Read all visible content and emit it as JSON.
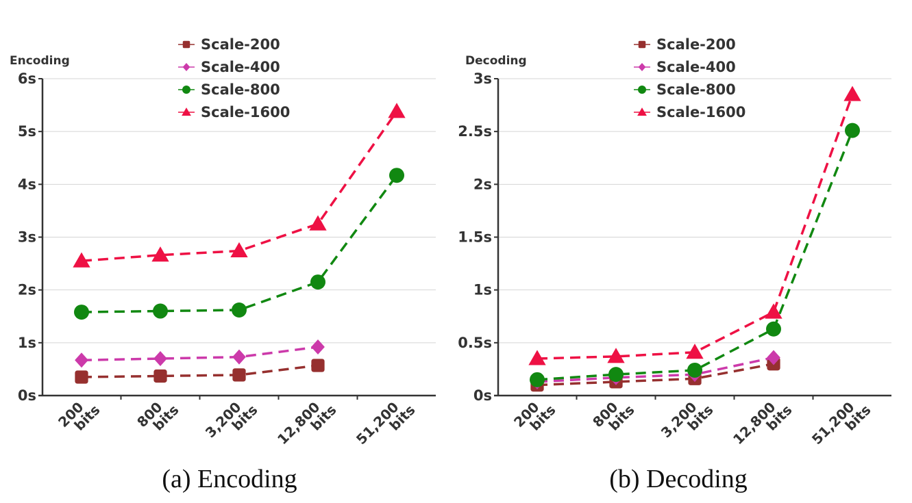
{
  "figure": {
    "captions": [
      "(a) Encoding",
      "(b) Decoding"
    ]
  },
  "chart_data": [
    {
      "type": "line",
      "title": "",
      "ylabel": "Encoding",
      "xlabel": "",
      "categories": [
        "200 bits",
        "800 bits",
        "3,200 bits",
        "12,800 bits",
        "51,200 bits"
      ],
      "category_lines": [
        [
          "200",
          "bits"
        ],
        [
          "800",
          "bits"
        ],
        [
          "3,200",
          "bits"
        ],
        [
          "12,800",
          "bits"
        ],
        [
          "51,200",
          "bits"
        ]
      ],
      "ylim": [
        0,
        6
      ],
      "yticks": [
        0,
        1,
        2,
        3,
        4,
        5,
        6
      ],
      "ytick_labels": [
        "0s",
        "1s",
        "2s",
        "3s",
        "4s",
        "5s",
        "6s"
      ],
      "grid": true,
      "legend_position": "top-center",
      "series": [
        {
          "name": "Scale-200",
          "color": "#96302f",
          "marker": "square",
          "values": [
            0.35,
            0.37,
            0.39,
            0.57,
            null
          ]
        },
        {
          "name": "Scale-400",
          "color": "#cc3aaa",
          "marker": "diamond",
          "values": [
            0.67,
            0.7,
            0.73,
            0.92,
            null
          ]
        },
        {
          "name": "Scale-800",
          "color": "#118811",
          "marker": "circle",
          "values": [
            1.58,
            1.6,
            1.62,
            2.15,
            4.17
          ]
        },
        {
          "name": "Scale-1600",
          "color": "#ee1144",
          "marker": "triangle",
          "values": [
            2.55,
            2.66,
            2.74,
            3.25,
            5.38
          ]
        }
      ]
    },
    {
      "type": "line",
      "title": "",
      "ylabel": "Decoding",
      "xlabel": "",
      "categories": [
        "200 bits",
        "800 bits",
        "3,200 bits",
        "12,800 bits",
        "51,200 bits"
      ],
      "category_lines": [
        [
          "200",
          "bits"
        ],
        [
          "800",
          "bits"
        ],
        [
          "3,200",
          "bits"
        ],
        [
          "12,800",
          "bits"
        ],
        [
          "51,200",
          "bits"
        ]
      ],
      "ylim": [
        0,
        3
      ],
      "yticks": [
        0,
        0.5,
        1,
        1.5,
        2,
        2.5,
        3
      ],
      "ytick_labels": [
        "0s",
        "0.5s",
        "1s",
        "1.5s",
        "2s",
        "2.5s",
        "3s"
      ],
      "grid": true,
      "legend_position": "top-center",
      "series": [
        {
          "name": "Scale-200",
          "color": "#96302f",
          "marker": "square",
          "values": [
            0.1,
            0.13,
            0.16,
            0.3,
            null
          ]
        },
        {
          "name": "Scale-400",
          "color": "#cc3aaa",
          "marker": "diamond",
          "values": [
            0.13,
            0.17,
            0.2,
            0.36,
            null
          ]
        },
        {
          "name": "Scale-800",
          "color": "#118811",
          "marker": "circle",
          "values": [
            0.15,
            0.2,
            0.24,
            0.63,
            2.51
          ]
        },
        {
          "name": "Scale-1600",
          "color": "#ee1144",
          "marker": "triangle",
          "values": [
            0.35,
            0.37,
            0.41,
            0.79,
            2.85
          ]
        }
      ]
    }
  ]
}
